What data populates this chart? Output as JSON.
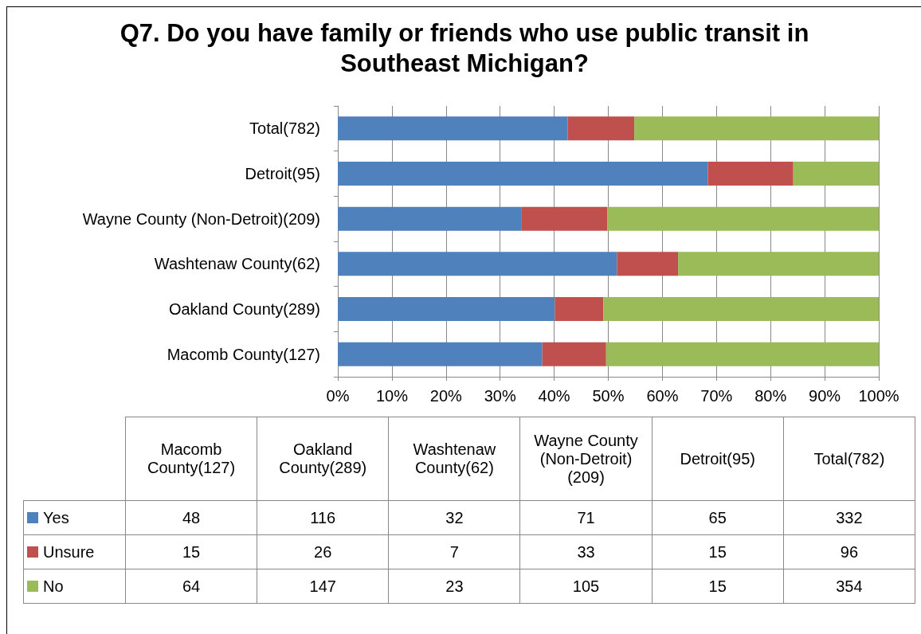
{
  "chart_data": [
    {
      "type": "bar",
      "title": "Q7. Do you have family or friends who use public transit in Southeast Michigan?",
      "orientation": "horizontal",
      "stacked": true,
      "categories": [
        "Total(782)",
        "Detroit(95)",
        "Wayne County (Non-Detroit)(209)",
        "Washtenaw County(62)",
        "Oakland County(289)",
        "Macomb County(127)"
      ],
      "series": [
        {
          "color": "#4f81bd",
          "values": [
            42.5,
            68.4,
            34.0,
            51.6,
            40.1,
            37.8
          ]
        },
        {
          "color": "#c0504d",
          "values": [
            12.3,
            15.8,
            15.8,
            11.3,
            9.0,
            11.8
          ]
        },
        {
          "color": "#9bbb59",
          "values": [
            45.2,
            15.8,
            50.2,
            37.1,
            50.9,
            50.4
          ]
        }
      ],
      "xlim": [
        0,
        100
      ],
      "xticks": [
        {
          "value": 0,
          "label": "0%"
        },
        {
          "value": 10,
          "label": "10%"
        },
        {
          "value": 20,
          "label": "20%"
        },
        {
          "value": 30,
          "label": "30%"
        },
        {
          "value": 40,
          "label": "40%"
        },
        {
          "value": 50,
          "label": "50%"
        },
        {
          "value": 60,
          "label": "60%"
        },
        {
          "value": 70,
          "label": "70%"
        },
        {
          "value": 80,
          "label": "80%"
        },
        {
          "value": 90,
          "label": "90%"
        },
        {
          "value": 100,
          "label": "100%"
        }
      ],
      "grid": "x"
    },
    {
      "type": "other",
      "categories": [
        "Macomb County(127)",
        "Oakland County(289)",
        "Washtenaw County(62)",
        "Wayne County (Non-Detroit)(209)",
        "Detroit(95)",
        "Total(782)"
      ],
      "series": [
        {
          "name": "Yes",
          "color": "#4f81bd",
          "values": [
            48,
            116,
            32,
            71,
            65,
            332
          ]
        },
        {
          "name": "Unsure",
          "color": "#c0504d",
          "values": [
            15,
            26,
            7,
            33,
            15,
            96
          ]
        },
        {
          "name": "No",
          "color": "#9bbb59",
          "values": [
            64,
            147,
            23,
            105,
            15,
            354
          ]
        }
      ],
      "data_labels": true,
      "legend": "left"
    }
  ]
}
